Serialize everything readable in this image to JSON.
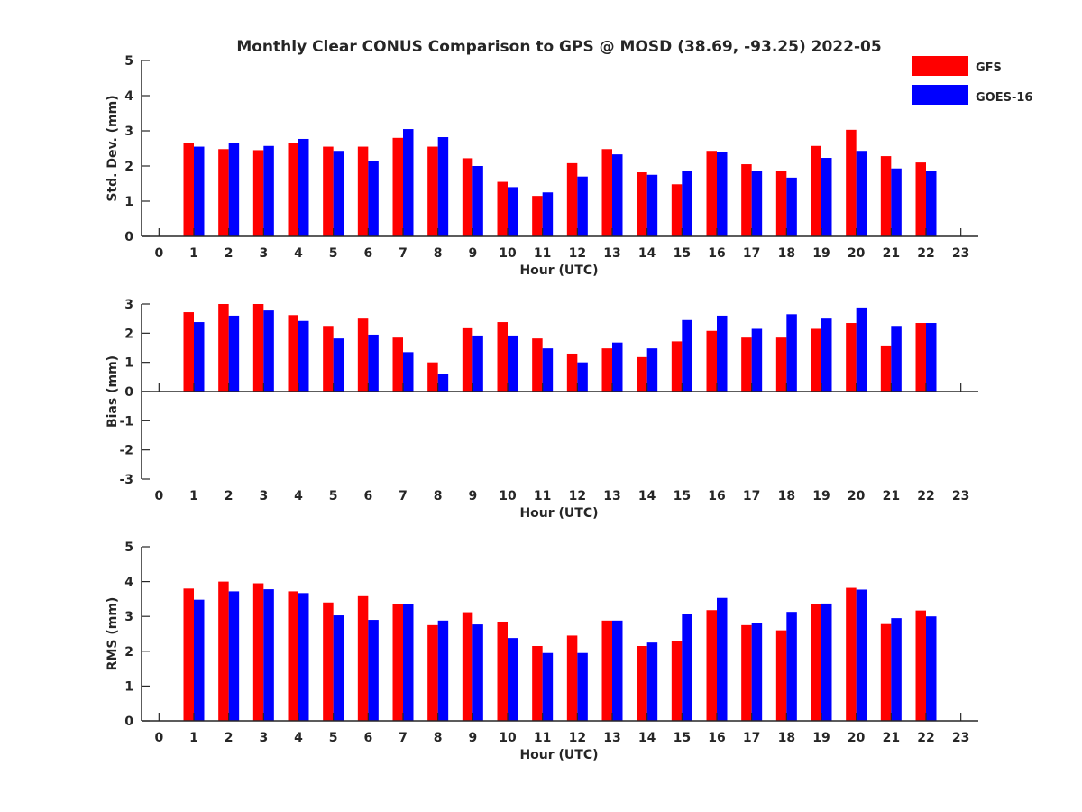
{
  "figure": {
    "title": "Monthly Clear CONUS Comparison to GPS @ MOSD (38.69, -93.25) 2022-05"
  },
  "legend": {
    "placement": "top-right",
    "entries": [
      {
        "label": "GFS",
        "color": "#ff0000"
      },
      {
        "label": "GOES-16",
        "color": "#0000ff"
      }
    ]
  },
  "chart_data": [
    {
      "type": "bar",
      "title": "Monthly Clear CONUS Comparison to GPS @ MOSD (38.69, -93.25) 2022-05",
      "xlabel": "Hour (UTC)",
      "ylabel": "Std. Dev. (mm)",
      "xlim": [
        -0.5,
        23.5
      ],
      "ylim": [
        0,
        5
      ],
      "yticks": [
        "0",
        "1",
        "2",
        "3",
        "4",
        "5"
      ],
      "xticks": [
        "0",
        "1",
        "2",
        "3",
        "4",
        "5",
        "6",
        "7",
        "8",
        "9",
        "10",
        "11",
        "12",
        "13",
        "14",
        "15",
        "16",
        "17",
        "18",
        "19",
        "20",
        "21",
        "22",
        "23"
      ],
      "x": [
        1,
        2,
        3,
        4,
        5,
        6,
        7,
        8,
        9,
        10,
        11,
        12,
        13,
        14,
        15,
        16,
        17,
        18,
        19,
        20,
        21,
        22
      ],
      "grid": false,
      "series": [
        {
          "name": "GFS",
          "color": "#ff0000",
          "values": [
            2.65,
            2.48,
            2.45,
            2.65,
            2.55,
            2.55,
            2.8,
            2.55,
            2.22,
            1.55,
            1.15,
            2.08,
            2.48,
            1.82,
            1.48,
            2.43,
            2.05,
            1.85,
            2.57,
            3.03,
            2.28,
            2.1
          ]
        },
        {
          "name": "GOES-16",
          "color": "#0000ff",
          "values": [
            2.55,
            2.65,
            2.57,
            2.77,
            2.43,
            2.15,
            3.05,
            2.82,
            2.0,
            1.4,
            1.25,
            1.7,
            2.33,
            1.75,
            1.87,
            2.4,
            1.85,
            1.67,
            2.23,
            2.43,
            1.93,
            1.85
          ]
        }
      ]
    },
    {
      "type": "bar",
      "title": "",
      "xlabel": "Hour (UTC)",
      "ylabel": "Bias (mm)",
      "xlim": [
        -0.5,
        23.5
      ],
      "ylim": [
        -3,
        3
      ],
      "yticks": [
        "-3",
        "-2",
        "-1",
        "0",
        "1",
        "2",
        "3"
      ],
      "xticks": [
        "0",
        "1",
        "2",
        "3",
        "4",
        "5",
        "6",
        "7",
        "8",
        "9",
        "10",
        "11",
        "12",
        "13",
        "14",
        "15",
        "16",
        "17",
        "18",
        "19",
        "20",
        "21",
        "22",
        "23"
      ],
      "x": [
        1,
        2,
        3,
        4,
        5,
        6,
        7,
        8,
        9,
        10,
        11,
        12,
        13,
        14,
        15,
        16,
        17,
        18,
        19,
        20,
        21,
        22
      ],
      "grid": false,
      "series": [
        {
          "name": "GFS",
          "color": "#ff0000",
          "values": [
            2.72,
            3.0,
            3.0,
            2.62,
            2.25,
            2.5,
            1.85,
            1.0,
            2.2,
            2.38,
            1.82,
            1.3,
            1.48,
            1.18,
            1.72,
            2.08,
            1.85,
            1.85,
            2.15,
            2.35,
            1.58,
            2.35
          ]
        },
        {
          "name": "GOES-16",
          "color": "#0000ff",
          "values": [
            2.38,
            2.6,
            2.78,
            2.42,
            1.82,
            1.95,
            1.35,
            0.6,
            1.92,
            1.92,
            1.48,
            1.0,
            1.68,
            1.48,
            2.45,
            2.6,
            2.15,
            2.65,
            2.5,
            2.88,
            2.25,
            2.35
          ]
        }
      ]
    },
    {
      "type": "bar",
      "title": "",
      "xlabel": "Hour (UTC)",
      "ylabel": "RMS (mm)",
      "xlim": [
        -0.5,
        23.5
      ],
      "ylim": [
        0,
        5
      ],
      "yticks": [
        "0",
        "1",
        "2",
        "3",
        "4",
        "5"
      ],
      "xticks": [
        "0",
        "1",
        "2",
        "3",
        "4",
        "5",
        "6",
        "7",
        "8",
        "9",
        "10",
        "11",
        "12",
        "13",
        "14",
        "15",
        "16",
        "17",
        "18",
        "19",
        "20",
        "21",
        "22",
        "23"
      ],
      "x": [
        1,
        2,
        3,
        4,
        5,
        6,
        7,
        8,
        9,
        10,
        11,
        12,
        13,
        14,
        15,
        16,
        17,
        18,
        19,
        20,
        21,
        22
      ],
      "grid": false,
      "series": [
        {
          "name": "GFS",
          "color": "#ff0000",
          "values": [
            3.8,
            4.0,
            3.95,
            3.72,
            3.4,
            3.58,
            3.35,
            2.75,
            3.12,
            2.85,
            2.15,
            2.45,
            2.88,
            2.15,
            2.28,
            3.18,
            2.75,
            2.6,
            3.35,
            3.82,
            2.78,
            3.17
          ]
        },
        {
          "name": "GOES-16",
          "color": "#0000ff",
          "values": [
            3.48,
            3.72,
            3.78,
            3.67,
            3.03,
            2.9,
            3.35,
            2.88,
            2.77,
            2.38,
            1.95,
            1.95,
            2.88,
            2.25,
            3.08,
            3.53,
            2.82,
            3.13,
            3.37,
            3.77,
            2.95,
            3.0
          ]
        }
      ]
    }
  ]
}
